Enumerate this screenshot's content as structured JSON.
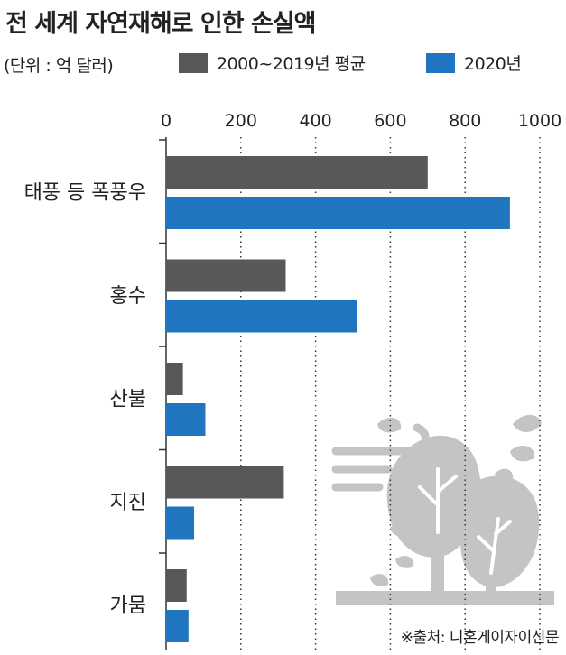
{
  "chart_data": {
    "type": "bar",
    "orientation": "horizontal",
    "title": "전 세계 자연재해로 인한 손실액",
    "unit_label": "(단위 : 억 달러)",
    "categories": [
      "태풍 등 폭풍우",
      "홍수",
      "산불",
      "지진",
      "가뭄"
    ],
    "series": [
      {
        "name": "2000~2019년 평균",
        "color": "#58575a",
        "values": [
          700,
          320,
          45,
          315,
          55
        ]
      },
      {
        "name": "2020년",
        "color": "#1f75bf",
        "values": [
          920,
          510,
          105,
          75,
          60
        ]
      }
    ],
    "xlim": [
      0,
      1000
    ],
    "xticks": [
      0,
      200,
      400,
      600,
      800,
      1000
    ],
    "xtick_labels": [
      "0",
      "200",
      "400",
      "600",
      "800",
      "1000"
    ],
    "grid": "dotted vertical",
    "legend_position": "top",
    "source": "※출처: 니혼게이자이신문"
  },
  "illustration": {
    "icon": "tree-wind-icon",
    "color": "#c4c4c4"
  }
}
